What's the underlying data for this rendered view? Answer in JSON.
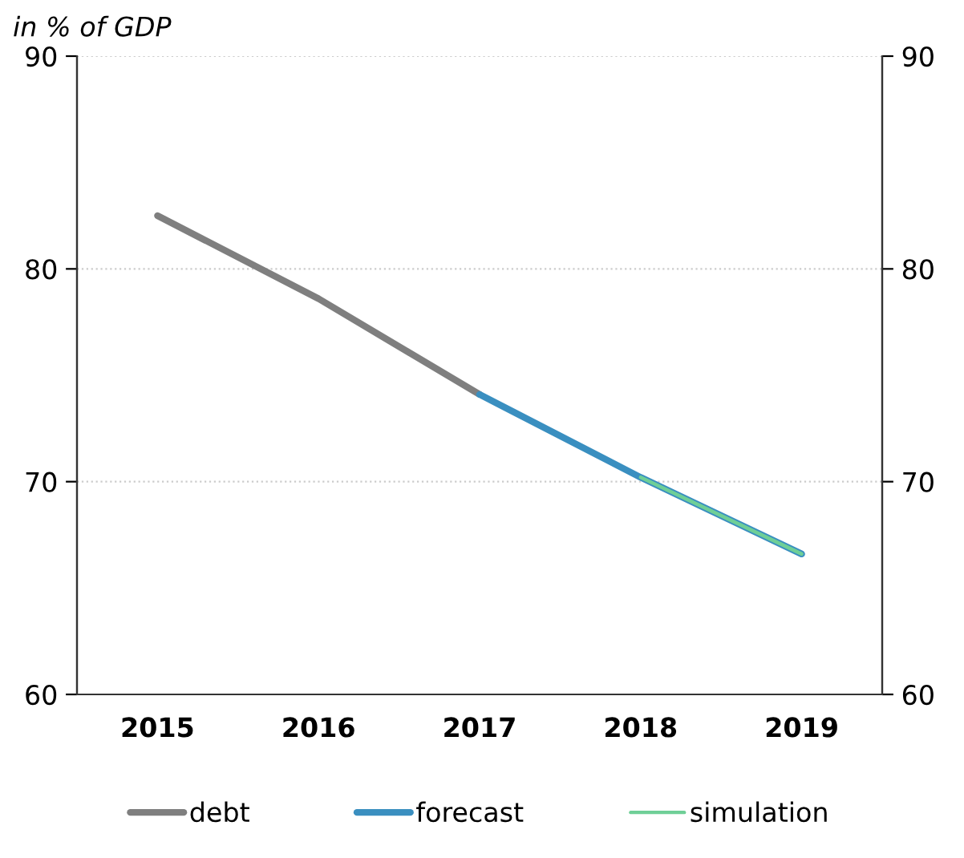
{
  "chart_data": {
    "type": "line",
    "title": "in % of GDP",
    "categories": [
      "2015",
      "2016",
      "2017",
      "2018",
      "2019"
    ],
    "series": [
      {
        "name": "debt",
        "color": "#7f7f7f",
        "values": [
          82.5,
          78.6,
          74.1,
          null,
          null
        ]
      },
      {
        "name": "forecast",
        "color": "#3a8fc0",
        "values": [
          null,
          null,
          74.1,
          70.2,
          66.6
        ]
      },
      {
        "name": "simulation",
        "color": "#6fcf97",
        "values": [
          null,
          null,
          null,
          70.2,
          66.6
        ]
      }
    ],
    "ylim": [
      60,
      90
    ],
    "yticks": [
      60,
      70,
      80,
      90
    ],
    "y2lim": [
      60,
      90
    ],
    "y2ticks": [
      60,
      70,
      80,
      90
    ],
    "grid": true,
    "legend": "bottom",
    "marker": "none",
    "line_style": "solid"
  }
}
